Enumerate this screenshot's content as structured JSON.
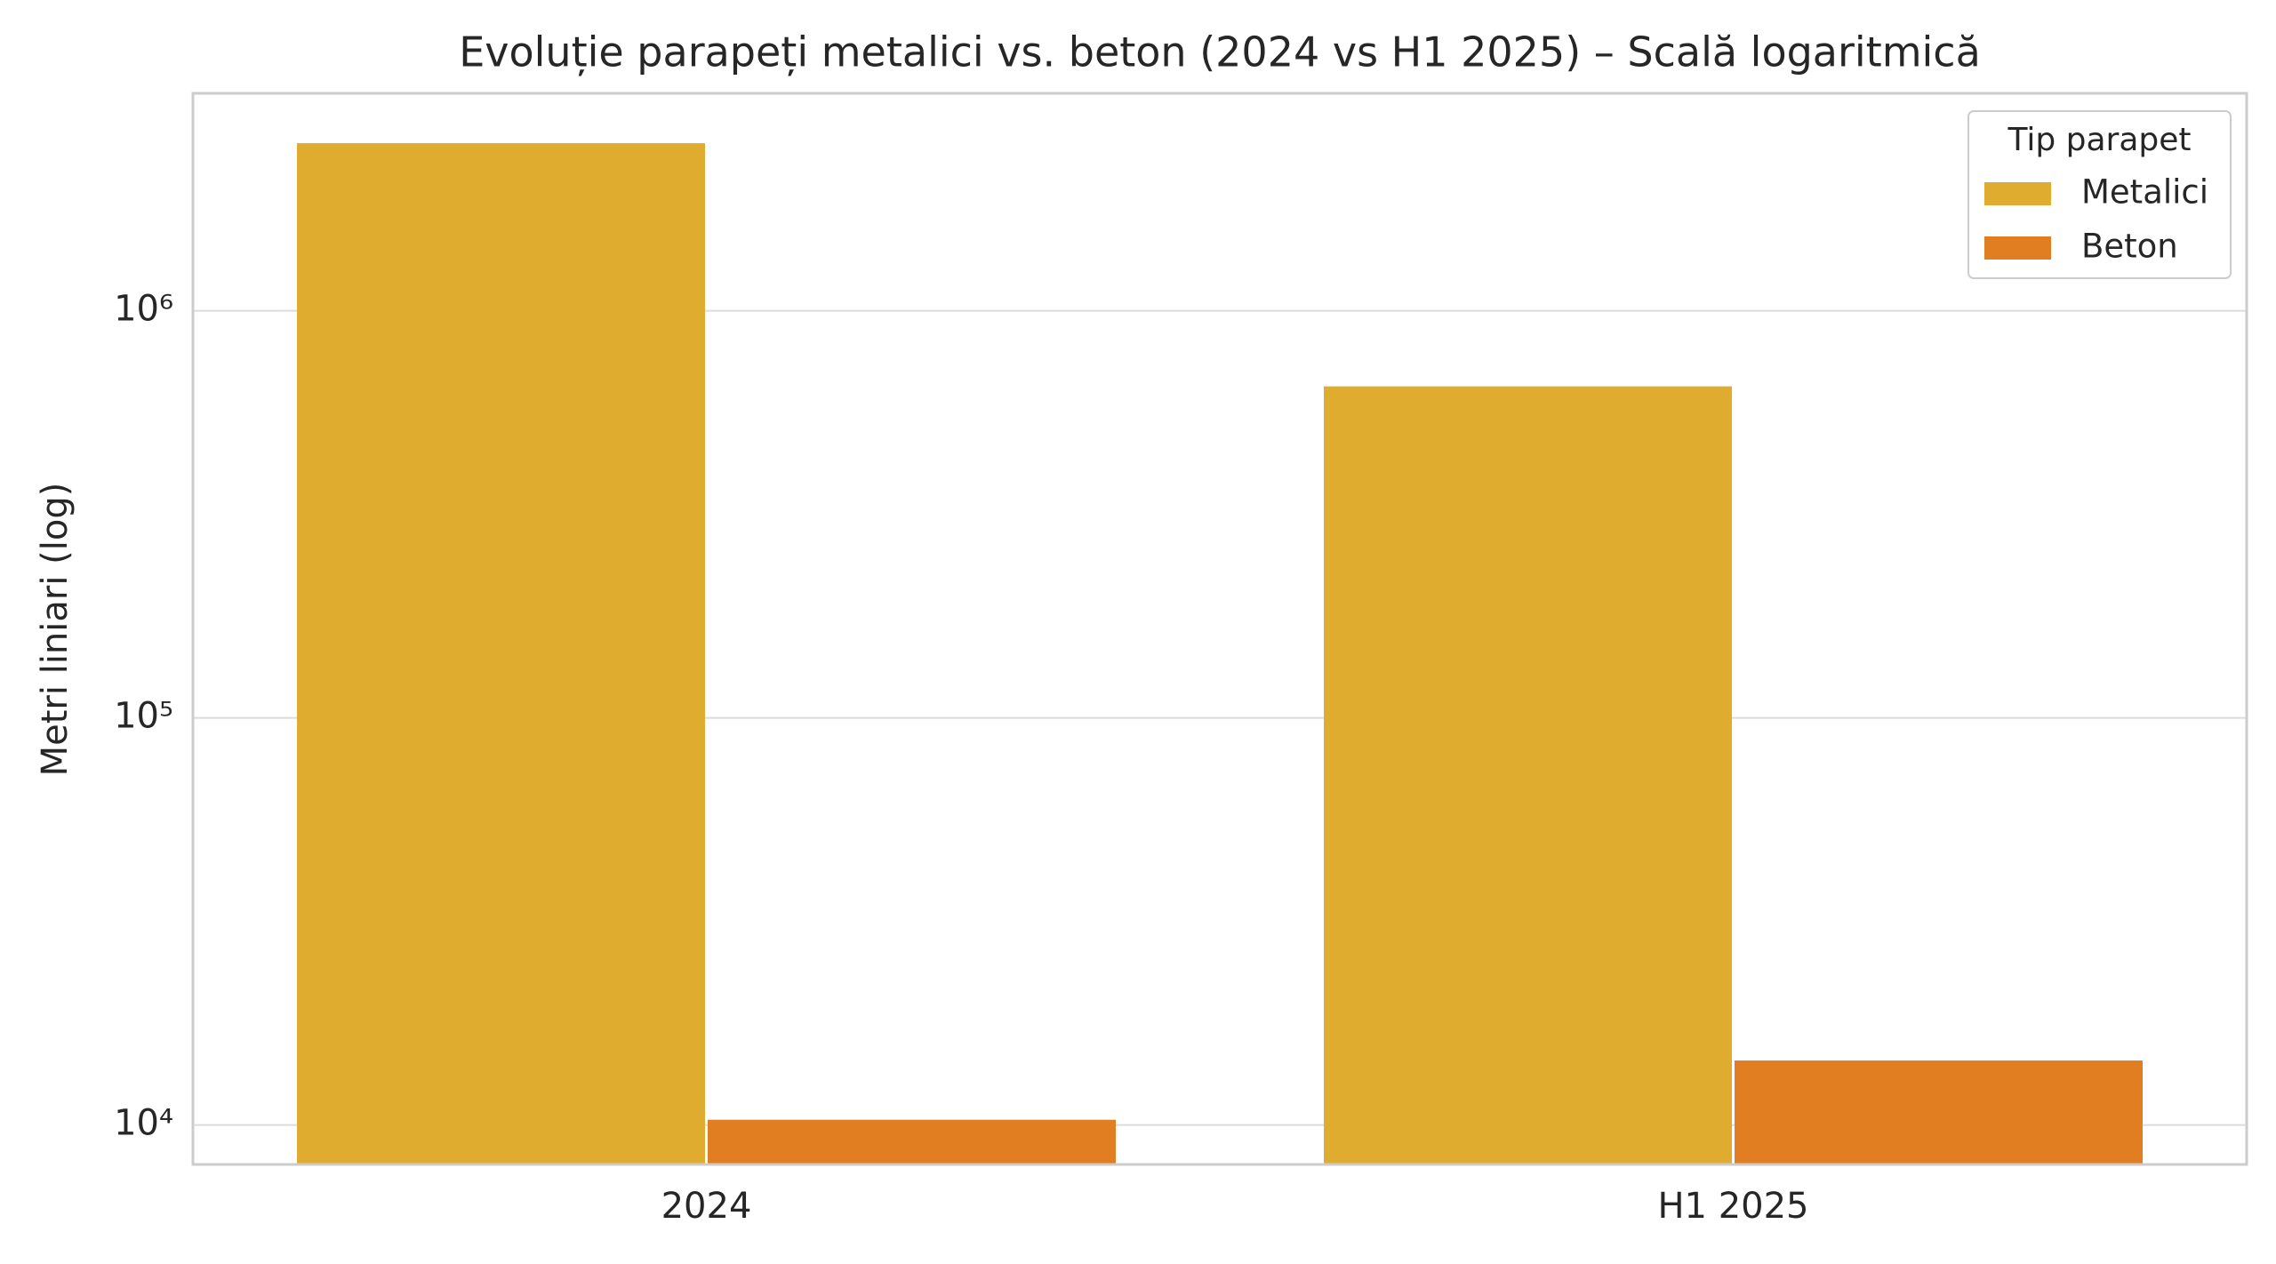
{
  "chart_data": {
    "type": "bar",
    "title": "Evoluție parapeți metalici vs. beton (2024 vs H1 2025) – Scală logaritmică",
    "y_label": "Metri liniari (log)",
    "categories": [
      "2024",
      "H1 2025"
    ],
    "series": [
      {
        "name": "Metalici",
        "color": "#dfac2f",
        "values": [
          2580000,
          652000
        ]
      },
      {
        "name": "Beton",
        "color": "#e07e21",
        "values": [
          10300,
          14400
        ]
      }
    ],
    "ylim": [
      8000,
      3420000
    ],
    "yticks": [
      {
        "value": 10000,
        "label": "10⁴"
      },
      {
        "value": 100000,
        "label": "10⁵"
      },
      {
        "value": 1000000,
        "label": "10⁶"
      }
    ],
    "log_scale": true,
    "grid": true,
    "legend_title": "Tip parapet",
    "legend_position": "upper right"
  }
}
